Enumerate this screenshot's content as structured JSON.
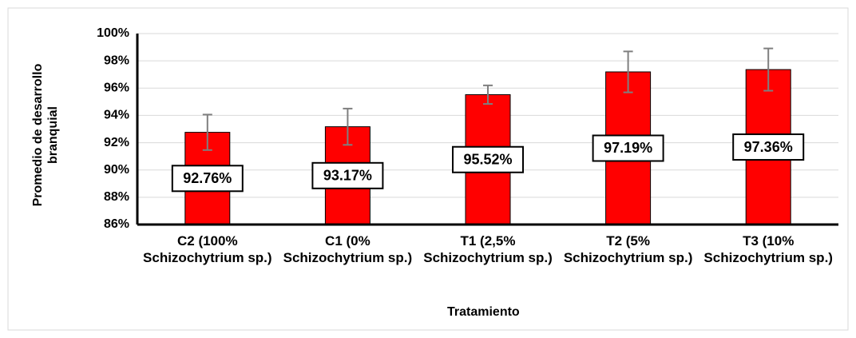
{
  "chart_data": {
    "type": "bar",
    "y_label": "Promedio de desarrollo branquial",
    "x_label": "Tratamiento",
    "categories": [
      "C2 (100% Schizochytrium sp.)",
      "C1 (0% Schizochytrium sp.)",
      "T1 (2,5% Schizochytrium sp.)",
      "T2 (5% Schizochytrium sp.)",
      "T3 (10% Schizochytrium sp.)"
    ],
    "values": [
      92.76,
      93.17,
      95.52,
      97.19,
      97.36
    ],
    "value_labels": [
      "92.76%",
      "93.17%",
      "95.52%",
      "97.19%",
      "97.36%"
    ],
    "errors": [
      1.3,
      1.33,
      0.68,
      1.5,
      1.55
    ],
    "color": "#ff0000",
    "ylim": [
      86,
      100
    ],
    "yticks": [
      {
        "value": 86,
        "label": "86%"
      },
      {
        "value": 88,
        "label": "88%"
      },
      {
        "value": 90,
        "label": "90%"
      },
      {
        "value": 92,
        "label": "92%"
      },
      {
        "value": 94,
        "label": "94%"
      },
      {
        "value": 96,
        "label": "96%"
      },
      {
        "value": 98,
        "label": "98%"
      },
      {
        "value": 100,
        "label": "100%"
      }
    ],
    "grid": true
  }
}
